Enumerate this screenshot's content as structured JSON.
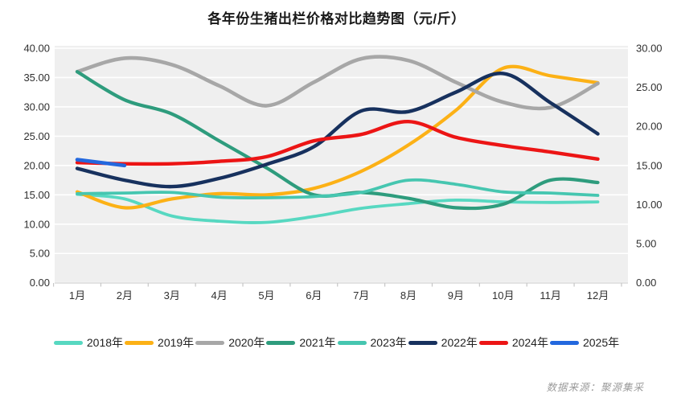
{
  "page": {
    "title": "各年份生猪出栏价格对比趋势图（元/斤）",
    "source_note": "数据来源：聚源集采"
  },
  "chart_data": {
    "type": "line",
    "title": "各年份生猪出栏价格对比趋势图（元/斤）",
    "categories": [
      "1月",
      "2月",
      "3月",
      "4月",
      "5月",
      "6月",
      "7月",
      "8月",
      "9月",
      "10月",
      "11月",
      "12月"
    ],
    "series": [
      {
        "name": "2018年",
        "color": "#57D8C1",
        "values": [
          15.1,
          14.3,
          11.4,
          10.5,
          10.3,
          11.3,
          12.7,
          13.5,
          14.1,
          13.8,
          13.7,
          13.8
        ]
      },
      {
        "name": "2019年",
        "color": "#FCB116",
        "values": [
          15.5,
          12.8,
          14.3,
          15.2,
          15.0,
          16.1,
          19.0,
          23.5,
          29.4,
          36.6,
          35.3,
          34.1
        ]
      },
      {
        "name": "2020年",
        "color": "#A7A7A7",
        "values": [
          36.0,
          38.3,
          37.2,
          33.6,
          30.2,
          34.2,
          38.2,
          37.9,
          34.2,
          30.8,
          29.9,
          34.0
        ]
      },
      {
        "name": "2021年",
        "color": "#2E9C7D",
        "values": [
          36.0,
          31.2,
          28.8,
          24.2,
          19.6,
          15.0,
          15.4,
          14.4,
          12.8,
          13.4,
          17.5,
          17.1
        ]
      },
      {
        "name": "2023年",
        "color": "#46C6B0",
        "values": [
          15.2,
          15.3,
          15.4,
          14.6,
          14.5,
          14.7,
          15.4,
          17.5,
          16.8,
          15.5,
          15.3,
          14.9
        ]
      },
      {
        "name": "2022年",
        "color": "#17315E",
        "values": [
          19.5,
          17.5,
          16.4,
          17.8,
          20.2,
          23.2,
          29.3,
          29.2,
          32.5,
          35.7,
          30.7,
          25.4
        ]
      },
      {
        "name": "2024年",
        "color": "#EC1515",
        "values": [
          20.5,
          20.3,
          20.3,
          20.7,
          21.5,
          24.2,
          25.3,
          27.5,
          24.8,
          23.4,
          22.3,
          21.1
        ]
      },
      {
        "name": "2025年",
        "color": "#2368DE",
        "values": [
          21.0,
          20.0,
          null,
          null,
          null,
          null,
          null,
          null,
          null,
          null,
          null,
          null
        ]
      }
    ],
    "y_axis_left": {
      "min": 0,
      "max": 40,
      "step": 5,
      "labels": [
        "40.00",
        "35.00",
        "30.00",
        "25.00",
        "20.00",
        "15.00",
        "10.00",
        "5.00",
        "0.00"
      ]
    },
    "y_axis_right": {
      "min": 0,
      "max": 30,
      "step": 5,
      "labels": [
        "30.00",
        "25.00",
        "20.00",
        "15.00",
        "10.00",
        "5.00",
        "0.00"
      ]
    },
    "grid": true,
    "legend_position": "bottom",
    "plot_bg": "#EFEFEF",
    "gridline_color": "#FFFFFF",
    "axis_line_color": "#D2D2D2",
    "tick_color": "#C6C6C6",
    "axis_label_color": "#303030"
  }
}
